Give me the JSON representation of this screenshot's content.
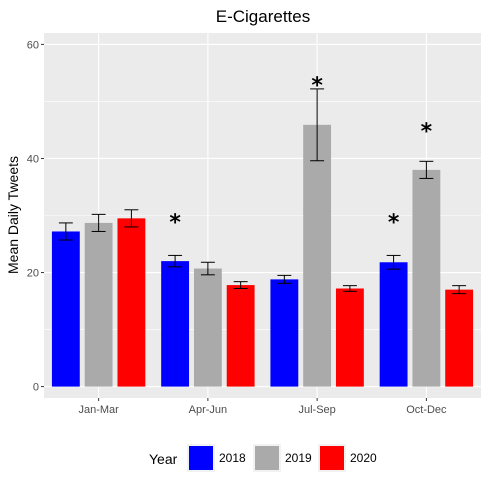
{
  "chart_data": {
    "type": "bar",
    "title": "E-Cigarettes",
    "xlabel": "",
    "ylabel": "Mean Daily Tweets",
    "ylim": [
      -2,
      62
    ],
    "yticks": [
      0,
      20,
      40,
      60
    ],
    "categories": [
      "Jan-Mar",
      "Apr-Jun",
      "Jul-Sep",
      "Oct-Dec"
    ],
    "series": [
      {
        "name": "2018",
        "color": "#0000ff",
        "values": [
          27.2,
          22.0,
          18.8,
          21.8
        ],
        "error": [
          1.5,
          1.0,
          0.7,
          1.2
        ]
      },
      {
        "name": "2019",
        "color": "#aaaaaa",
        "values": [
          28.7,
          20.7,
          45.9,
          38.0
        ],
        "error": [
          1.5,
          1.1,
          6.3,
          1.5
        ]
      },
      {
        "name": "2020",
        "color": "#ff0000",
        "values": [
          29.5,
          17.8,
          17.2,
          17.0
        ],
        "error": [
          1.5,
          0.6,
          0.5,
          0.7
        ]
      }
    ],
    "annotations": [
      {
        "text": "*",
        "category": "Apr-Jun",
        "series": "2018",
        "y": 30
      },
      {
        "text": "*",
        "category": "Jul-Sep",
        "series": "2019",
        "y": 54
      },
      {
        "text": "*",
        "category": "Oct-Dec",
        "series": "2018",
        "y": 30
      },
      {
        "text": "*",
        "category": "Oct-Dec",
        "series": "2019",
        "y": 46
      }
    ],
    "legend": {
      "title": "Year",
      "position": "bottom"
    },
    "grid": true,
    "panel_background": "#ebebeb"
  }
}
